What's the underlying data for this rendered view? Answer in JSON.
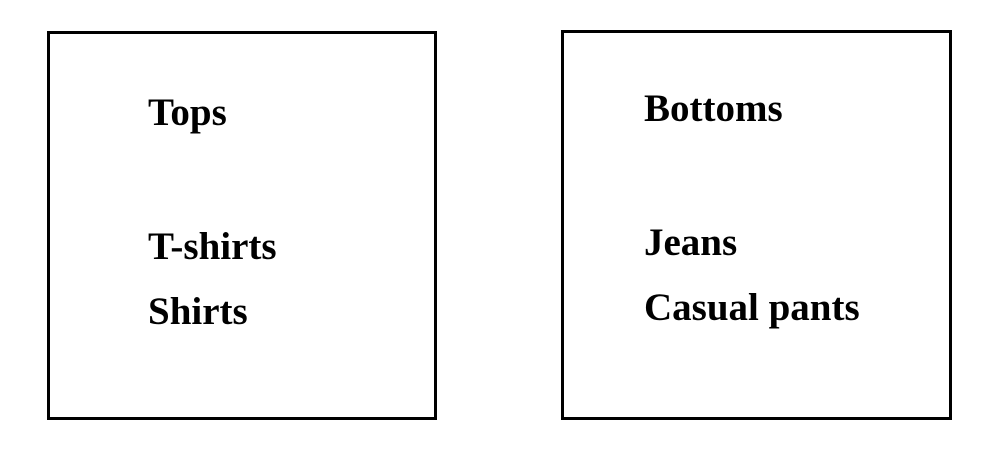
{
  "panels": [
    {
      "title": "Tops",
      "items": [
        "T-shirts",
        "Shirts"
      ]
    },
    {
      "title": "Bottoms",
      "items": [
        "Jeans",
        "Casual pants"
      ]
    }
  ]
}
